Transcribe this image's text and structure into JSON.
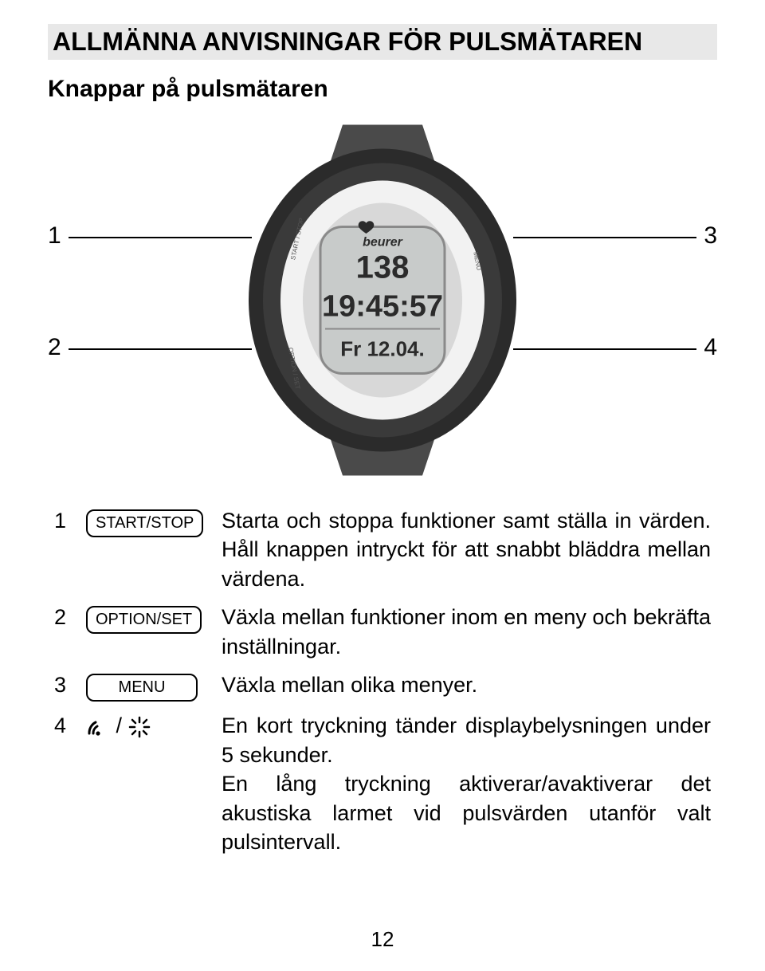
{
  "section_title": "ALLMÄNNA ANVISNINGAR FÖR PULSMÄTAREN",
  "subtitle": "Knappar på pulsmätaren",
  "callouts": {
    "c1": "1",
    "c2": "2",
    "c3": "3",
    "c4": "4"
  },
  "watch": {
    "brand": "beurer",
    "hr": "138",
    "time": "19:45:57",
    "date": "Fr 12.04.",
    "left_top_label": "START / STOP",
    "left_bottom_label": "OPTION / SET",
    "right_top_label": "MENU"
  },
  "buttons": {
    "r1": {
      "num": "1",
      "label": "START/STOP",
      "desc": "Starta och stoppa funktioner samt ställa in värden. Håll knappen intryckt för att snabbt bläddra mellan värdena."
    },
    "r2": {
      "num": "2",
      "label": "OPTION/SET",
      "desc": "Växla mellan funktioner inom en meny och bekräfta inställningar."
    },
    "r3": {
      "num": "3",
      "label": "MENU",
      "desc": "Växla mellan olika menyer."
    },
    "r4": {
      "num": "4",
      "sep": " / ",
      "desc": "En kort tryckning tänder displaybelysningen under 5 sekunder.\nEn lång tryckning aktiverar/avaktiverar det akustiska larmet vid pulsvärden utanför valt pulsintervall."
    }
  },
  "page_number": "12",
  "colors": {
    "band": "#4a4a4a",
    "bezel_outer": "#2b2b2b",
    "bezel_inner": "#f2f2f2",
    "screen": "#c8cbca",
    "lcd": "#2b2b2b"
  }
}
